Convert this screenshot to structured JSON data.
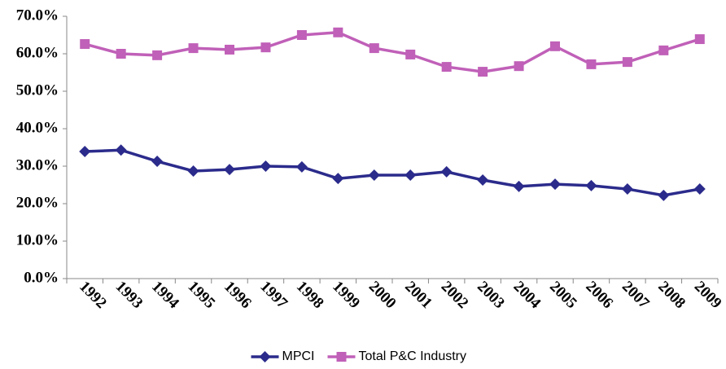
{
  "chart_data": {
    "type": "line",
    "categories": [
      "1992",
      "1993",
      "1994",
      "1995",
      "1996",
      "1997",
      "1998",
      "1999",
      "2000",
      "2001",
      "2002",
      "2003",
      "2004",
      "2005",
      "2006",
      "2007",
      "2008",
      "2009"
    ],
    "series": [
      {
        "name": "MPCI",
        "color": "#2b2b8c",
        "marker": "diamond",
        "values": [
          33.9,
          34.3,
          31.3,
          28.7,
          29.1,
          30.0,
          29.8,
          26.7,
          27.6,
          27.6,
          28.5,
          26.3,
          24.6,
          25.2,
          24.8,
          23.9,
          22.2,
          23.9
        ]
      },
      {
        "name": "Total P&C Industry",
        "color": "#c060b8",
        "marker": "square",
        "values": [
          62.6,
          60.0,
          59.6,
          61.5,
          61.1,
          61.7,
          65.0,
          65.7,
          61.5,
          59.8,
          56.5,
          55.2,
          56.7,
          62.0,
          57.2,
          57.8,
          60.9,
          63.9
        ]
      }
    ],
    "ylim": [
      0,
      70
    ],
    "yticks": [
      {
        "value": 0,
        "label": "0.0%"
      },
      {
        "value": 10,
        "label": "10.0%"
      },
      {
        "value": 20,
        "label": "20.0%"
      },
      {
        "value": 30,
        "label": "30.0%"
      },
      {
        "value": 40,
        "label": "40.0%"
      },
      {
        "value": 50,
        "label": "50.0%"
      },
      {
        "value": 60,
        "label": "60.0%"
      },
      {
        "value": 70,
        "label": "70.0%"
      }
    ],
    "grid": false,
    "legend": "bottom"
  }
}
